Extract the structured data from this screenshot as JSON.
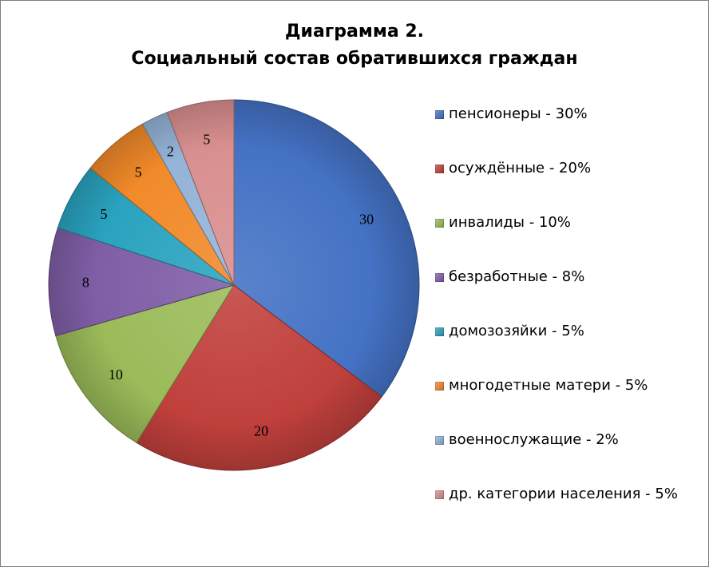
{
  "chart_data": {
    "type": "pie",
    "title": "Диаграмма 2.",
    "subtitle": "Социальный состав обратившихся граждан",
    "legend_position": "right",
    "slices": [
      {
        "label": "пенсионеры - 30%",
        "value": 30,
        "data_label": "30",
        "color": "#4472c4"
      },
      {
        "label": "осуждённые - 20%",
        "value": 20,
        "data_label": "20",
        "color": "#c0403c"
      },
      {
        "label": "инвалиды - 10%",
        "value": 10,
        "data_label": "10",
        "color": "#9bbb59"
      },
      {
        "label": "безработные - 8%",
        "value": 8,
        "data_label": "8",
        "color": "#7f5ea6"
      },
      {
        "label": "домозозяйки - 5%",
        "value": 5,
        "data_label": "5",
        "color": "#2aa3bf"
      },
      {
        "label": "многодетные матери - 5%",
        "value": 5,
        "data_label": "5",
        "color": "#f18a2a"
      },
      {
        "label": "военнослужащие - 2%",
        "value": 2,
        "data_label": "2",
        "color": "#95b3d7"
      },
      {
        "label": "др. категории населения - 5%",
        "value": 5,
        "data_label": "5",
        "color": "#d98f8f"
      }
    ]
  }
}
